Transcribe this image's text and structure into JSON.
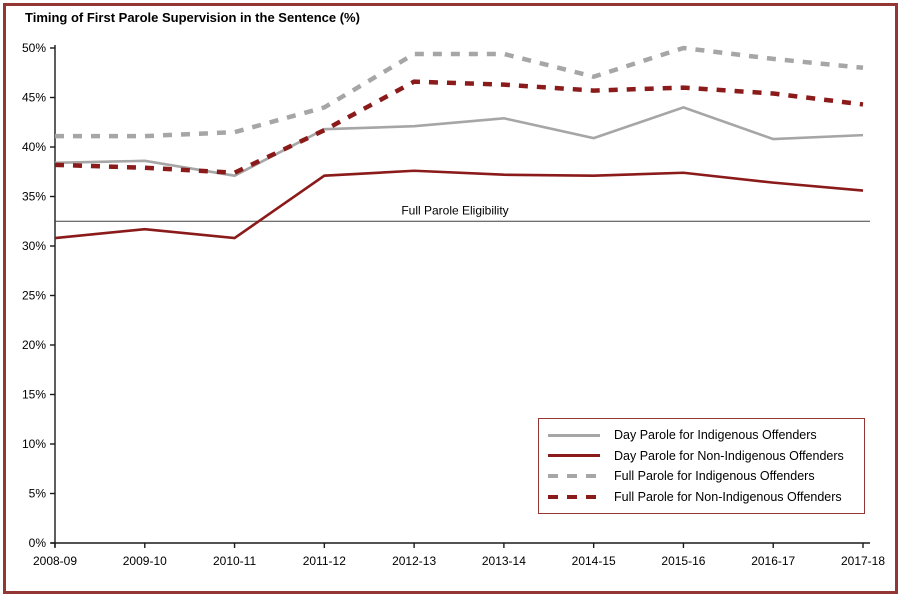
{
  "title": "Timing of First Parole Supervision in the Sentence (%)",
  "colors": {
    "gray": "#a6a6a6",
    "dark_red": "#8b1a1a",
    "frame_border": "#943634",
    "axis": "#1a1a1a",
    "reference_line": "#404040",
    "text": "#000000"
  },
  "annotation": {
    "label": "Full Parole Eligibility",
    "value": 32.5
  },
  "chart_data": {
    "type": "line",
    "title": "Timing of First Parole Supervision in the Sentence (%)",
    "xlabel": "",
    "ylabel": "",
    "ylim": [
      0,
      50
    ],
    "y_tick_step": 5,
    "y_tick_labels": [
      "0%",
      "5%",
      "10%",
      "15%",
      "20%",
      "25%",
      "30%",
      "35%",
      "40%",
      "45%",
      "50%"
    ],
    "grid": false,
    "legend_position": "inside-bottom-right-box",
    "categories": [
      "2008-09",
      "2009-10",
      "2010-11",
      "2011-12",
      "2012-13",
      "2013-14",
      "2014-15",
      "2015-16",
      "2016-17",
      "2017-18"
    ],
    "reference_line": {
      "label": "Full Parole Eligibility",
      "value": 32.5
    },
    "series": [
      {
        "name": "Day Parole for Indigenous Offenders",
        "color": "#a6a6a6",
        "style": "solid",
        "values": [
          38.4,
          38.6,
          37.1,
          41.8,
          42.1,
          42.9,
          40.9,
          44.0,
          40.8,
          41.2
        ]
      },
      {
        "name": "Day Parole for Non-Indigenous Offenders",
        "color": "#8b1a1a",
        "style": "solid",
        "values": [
          30.8,
          31.7,
          30.8,
          37.1,
          37.6,
          37.2,
          37.1,
          37.4,
          36.4,
          35.6
        ]
      },
      {
        "name": "Full Parole for Indigenous Offenders",
        "color": "#a6a6a6",
        "style": "dashed",
        "values": [
          41.1,
          41.1,
          41.5,
          44.0,
          49.4,
          49.4,
          47.1,
          50.0,
          48.9,
          48.0
        ]
      },
      {
        "name": "Full Parole for Non-Indigenous Offenders",
        "color": "#8b1a1a",
        "style": "dashed",
        "values": [
          38.2,
          37.9,
          37.4,
          41.7,
          46.6,
          46.3,
          45.7,
          46.0,
          45.4,
          44.3
        ]
      }
    ]
  }
}
